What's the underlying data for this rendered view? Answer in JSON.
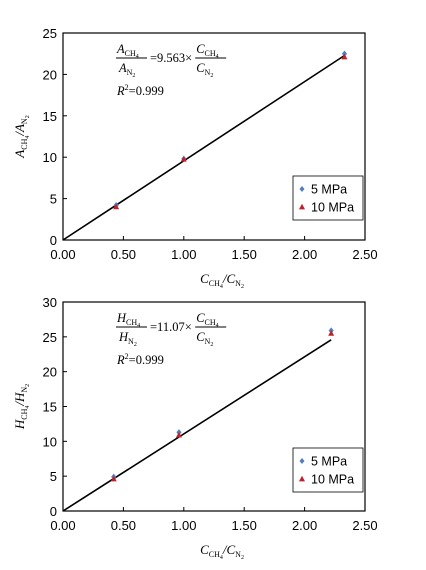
{
  "chart_data": [
    {
      "type": "scatter",
      "xlim": [
        0,
        2.5
      ],
      "ylim": [
        0,
        25
      ],
      "x_ticks": [
        "0.00",
        "0.50",
        "1.00",
        "1.50",
        "2.00",
        "2.50"
      ],
      "y_ticks": [
        "0",
        "5",
        "10",
        "15",
        "20",
        "25"
      ],
      "xlabel": {
        "main": "C",
        "sub1": "CH",
        "sub1b": "4",
        "sep": "/C",
        "sub2": "N",
        "sub2b": "2"
      },
      "ylabel": {
        "main": "A",
        "sub1": "CH",
        "sub1b": "4",
        "sep": "/A",
        "sub2": "N",
        "sub2b": "2"
      },
      "equation": {
        "num_left": "A",
        "num_left_sub": "CH",
        "num_left_sub2": "4",
        "den_left": "A",
        "den_left_sub": "N",
        "den_left_sub2": "2",
        "coef": "=9.563×",
        "num_right": "C",
        "num_right_sub": "CH",
        "num_right_sub2": "4",
        "den_right": "C",
        "den_right_sub": "N",
        "den_right_sub2": "2",
        "r2_label": "R",
        "r2_sup": "2",
        "r2_value": "=0.999"
      },
      "fit_line": {
        "slope": 9.563,
        "x_range": [
          0,
          2.33
        ]
      },
      "series": [
        {
          "name": "5 MPa",
          "marker": "diamond",
          "color": "#4f81bd",
          "points": [
            {
              "x": 0.44,
              "y": 4.2
            },
            {
              "x": 1.0,
              "y": 9.8
            },
            {
              "x": 2.33,
              "y": 22.5
            }
          ]
        },
        {
          "name": "10 MPa",
          "marker": "triangle",
          "color": "#c0202a",
          "points": [
            {
              "x": 0.44,
              "y": 4.0
            },
            {
              "x": 1.0,
              "y": 9.75
            },
            {
              "x": 2.33,
              "y": 22.1
            }
          ]
        }
      ],
      "legend_position": "bottom-right",
      "grid": false
    },
    {
      "type": "scatter",
      "xlim": [
        0,
        2.5
      ],
      "ylim": [
        0,
        30
      ],
      "x_ticks": [
        "0.00",
        "0.50",
        "1.00",
        "1.50",
        "2.00",
        "2.50"
      ],
      "y_ticks": [
        "0",
        "5",
        "10",
        "15",
        "20",
        "25",
        "30"
      ],
      "xlabel": {
        "main": "C",
        "sub1": "CH",
        "sub1b": "4",
        "sep": "/C",
        "sub2": "N",
        "sub2b": "2"
      },
      "ylabel": {
        "main": "H",
        "sub1": "CH",
        "sub1b": "4",
        "sep": "/H",
        "sub2": "N",
        "sub2b": "2"
      },
      "equation": {
        "num_left": "H",
        "num_left_sub": "CH",
        "num_left_sub2": "4",
        "den_left": "H",
        "den_left_sub": "N",
        "den_left_sub2": "2",
        "coef": "=11.07×",
        "num_right": "C",
        "num_right_sub": "CH",
        "num_right_sub2": "4",
        "den_right": "C",
        "den_right_sub": "N",
        "den_right_sub2": "2",
        "r2_label": "R",
        "r2_sup": "2",
        "r2_value": "=0.999"
      },
      "fit_line": {
        "slope": 11.07,
        "x_range": [
          0,
          2.22
        ]
      },
      "series": [
        {
          "name": "5 MPa",
          "marker": "diamond",
          "color": "#4f81bd",
          "points": [
            {
              "x": 0.42,
              "y": 4.9
            },
            {
              "x": 0.96,
              "y": 11.3
            },
            {
              "x": 2.22,
              "y": 25.9
            }
          ]
        },
        {
          "name": "10 MPa",
          "marker": "triangle",
          "color": "#c0202a",
          "points": [
            {
              "x": 0.42,
              "y": 4.6
            },
            {
              "x": 0.96,
              "y": 10.9
            },
            {
              "x": 2.22,
              "y": 25.5
            }
          ]
        }
      ],
      "legend_position": "bottom-right",
      "grid": false
    }
  ]
}
